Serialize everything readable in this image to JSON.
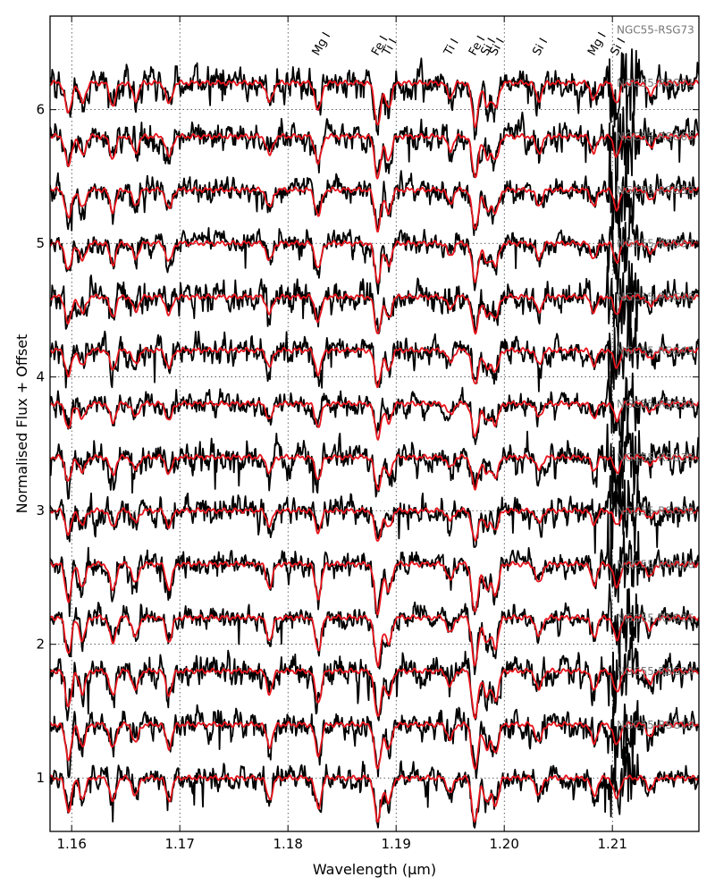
{
  "chart_data": {
    "type": "line",
    "xlabel": "Wavelength (μm)",
    "ylabel": "Normalised Flux + Offset",
    "xlim": [
      1.158,
      1.218
    ],
    "ylim": [
      0.6,
      6.7
    ],
    "grid": true,
    "x_ticks": [
      1.16,
      1.17,
      1.18,
      1.19,
      1.2,
      1.21
    ],
    "x_tick_labels": [
      "1.16",
      "1.17",
      "1.18",
      "1.19",
      "1.20",
      "1.21"
    ],
    "y_ticks": [
      1,
      2,
      3,
      4,
      5,
      6
    ],
    "y_tick_labels": [
      "1",
      "2",
      "3",
      "4",
      "5",
      "6"
    ],
    "series_colors": {
      "observed": "#000000",
      "model": "#e8141c"
    },
    "stars": [
      {
        "name": "NGC55-RSG19",
        "offset": 1.0
      },
      {
        "name": "NGC55-RSG24",
        "offset": 1.4
      },
      {
        "name": "NGC55-RSG25",
        "offset": 1.8
      },
      {
        "name": "NGC55-RSG26",
        "offset": 2.2
      },
      {
        "name": "NGC55-RSG30",
        "offset": 2.6
      },
      {
        "name": "NGC55-RSG35",
        "offset": 3.0
      },
      {
        "name": "NGC55-RSG39",
        "offset": 3.4
      },
      {
        "name": "NGC55-RSG45",
        "offset": 3.8
      },
      {
        "name": "NGC55-RSG46",
        "offset": 4.2
      },
      {
        "name": "NGC55-RSG57",
        "offset": 4.6
      },
      {
        "name": "NGC55-RSG58",
        "offset": 5.0
      },
      {
        "name": "NGC55-RSG65",
        "offset": 5.4
      },
      {
        "name": "NGC55-RSG71",
        "offset": 5.8
      },
      {
        "name": "NGC55-RSG73",
        "offset": 6.2
      }
    ],
    "line_ids": [
      {
        "label": "Mg I",
        "wavelength": 1.1828
      },
      {
        "label": "Fe I",
        "wavelength": 1.1883
      },
      {
        "label": "Ti I",
        "wavelength": 1.1893
      },
      {
        "label": "Ti I",
        "wavelength": 1.195
      },
      {
        "label": "Fe I",
        "wavelength": 1.1973
      },
      {
        "label": "Si I",
        "wavelength": 1.1984
      },
      {
        "label": "Si I",
        "wavelength": 1.1992
      },
      {
        "label": "Si I",
        "wavelength": 1.2032
      },
      {
        "label": "Mg I",
        "wavelength": 1.2083
      },
      {
        "label": "Si I",
        "wavelength": 1.2104
      }
    ],
    "absorption_lines": [
      {
        "wavelength": 1.1597,
        "depth": 0.22
      },
      {
        "wavelength": 1.161,
        "depth": 0.14
      },
      {
        "wavelength": 1.1638,
        "depth": 0.16
      },
      {
        "wavelength": 1.1659,
        "depth": 0.12
      },
      {
        "wavelength": 1.169,
        "depth": 0.15
      },
      {
        "wavelength": 1.1783,
        "depth": 0.14
      },
      {
        "wavelength": 1.1828,
        "depth": 0.2
      },
      {
        "wavelength": 1.1883,
        "depth": 0.3
      },
      {
        "wavelength": 1.1893,
        "depth": 0.17
      },
      {
        "wavelength": 1.195,
        "depth": 0.1
      },
      {
        "wavelength": 1.1973,
        "depth": 0.3
      },
      {
        "wavelength": 1.1984,
        "depth": 0.16
      },
      {
        "wavelength": 1.1992,
        "depth": 0.18
      },
      {
        "wavelength": 1.2032,
        "depth": 0.12
      },
      {
        "wavelength": 1.2083,
        "depth": 0.12
      },
      {
        "wavelength": 1.2104,
        "depth": 0.14
      },
      {
        "wavelength": 1.2135,
        "depth": 0.08
      }
    ]
  }
}
